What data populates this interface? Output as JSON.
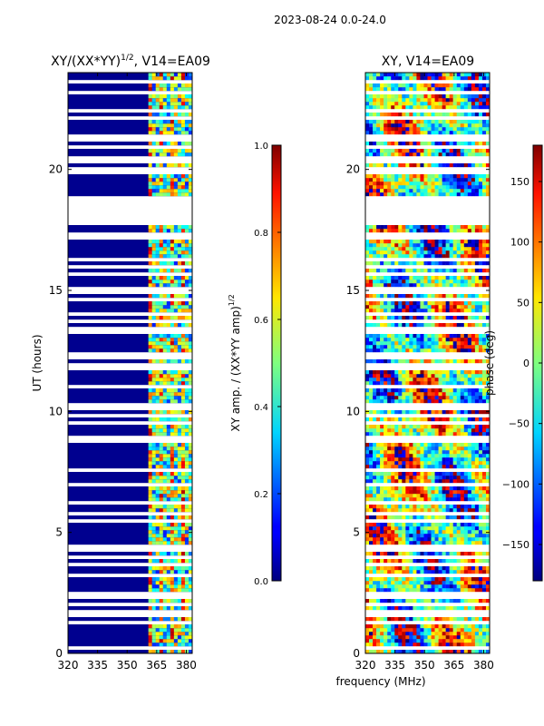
{
  "chart_data": {
    "suptitle": "2023-08-24 0.0-24.0",
    "xlabel": "frequency (MHz)",
    "ylabel": "UT (hours)",
    "panels": [
      {
        "type": "heatmap",
        "title_main": "XY/(XX*YY)",
        "title_exp": "1/2",
        "title_tail": ", V14=EA09",
        "x_ticks": [
          "320",
          "335",
          "350",
          "365",
          "380"
        ],
        "y_ticks": [
          "0",
          "5",
          "10",
          "15",
          "20"
        ],
        "xlim": [
          320,
          383
        ],
        "ylim": [
          0,
          24
        ],
        "colorbar": {
          "label_main": "XY amp. / (XX*YY amp)",
          "label_exp": "1/2",
          "range": [
            0.0,
            1.0
          ],
          "ticks": [
            "0.0",
            "0.2",
            "0.4",
            "0.6",
            "0.8",
            "1.0"
          ]
        }
      },
      {
        "type": "heatmap",
        "title_main": "XY, V14=EA09",
        "x_ticks": [
          "320",
          "335",
          "350",
          "365",
          "380"
        ],
        "y_ticks": [
          "0",
          "5",
          "10",
          "15",
          "20"
        ],
        "xlim": [
          320,
          383
        ],
        "ylim": [
          0,
          24
        ],
        "colorbar": {
          "label_main": "phase (deg)",
          "range": [
            -180,
            180
          ],
          "ticks": [
            "−150",
            "−100",
            "−50",
            "0",
            "50",
            "100",
            "150"
          ]
        }
      }
    ]
  }
}
